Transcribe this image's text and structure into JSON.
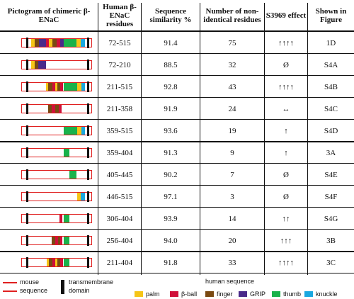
{
  "headers": {
    "pictogram": "Pictogram of chimeric β-ENaC",
    "residues": "Human β-ENaC residues",
    "similarity": "Sequence similarity %",
    "nonidentical": "Number of non-identical residues",
    "effect": "S3969 effect",
    "figure": "Shown in Figure"
  },
  "colors": {
    "mouse": "#e02020",
    "tm": "#111111",
    "palm": "#f5c518",
    "beta_ball": "#d0103a",
    "finger": "#7a4a12",
    "grip": "#4a2a8a",
    "thumb": "#19b24b",
    "knuckle": "#19a8e0"
  },
  "rows": [
    {
      "residues": "72-515",
      "similarity": "91.4",
      "nonidentical": "75",
      "effect": "↑↑↑↑",
      "figure": "1D",
      "segments": [
        [
          "palm",
          14,
          19
        ],
        [
          "finger",
          19,
          25
        ],
        [
          "grip",
          25,
          35
        ],
        [
          "beta_ball",
          35,
          39
        ],
        [
          "palm",
          39,
          44
        ],
        [
          "finger",
          44,
          50
        ],
        [
          "beta_ball",
          50,
          55
        ],
        [
          "grip",
          55,
          60
        ],
        [
          "thumb",
          60,
          78
        ],
        [
          "palm",
          78,
          84
        ],
        [
          "knuckle",
          84,
          90
        ]
      ]
    },
    {
      "residues": "72-210",
      "similarity": "88.5",
      "nonidentical": "32",
      "effect": "Ø",
      "figure": "S4A",
      "segments": [
        [
          "palm",
          14,
          19
        ],
        [
          "finger",
          19,
          24
        ],
        [
          "grip",
          24,
          35
        ]
      ]
    },
    {
      "residues": "211-515",
      "similarity": "92.8",
      "nonidentical": "43",
      "effect": "↑↑↑↑",
      "figure": "S4B",
      "segments": [
        [
          "palm",
          35,
          38
        ],
        [
          "finger",
          38,
          44
        ],
        [
          "beta_ball",
          44,
          48
        ],
        [
          "palm",
          48,
          51
        ],
        [
          "finger",
          51,
          55
        ],
        [
          "beta_ball",
          55,
          59
        ],
        [
          "thumb",
          60,
          79
        ],
        [
          "palm",
          79,
          85
        ],
        [
          "knuckle",
          85,
          90
        ]
      ]
    },
    {
      "residues": "211-358",
      "similarity": "91.9",
      "nonidentical": "24",
      "effect": "↔",
      "figure": "S4C",
      "segments": [
        [
          "finger",
          38,
          43
        ],
        [
          "beta_ball",
          43,
          48
        ],
        [
          "finger",
          48,
          53
        ],
        [
          "beta_ball",
          53,
          57
        ]
      ]
    },
    {
      "residues": "359-515",
      "similarity": "93.6",
      "nonidentical": "19",
      "effect": "↑",
      "figure": "S4D",
      "segments": [
        [
          "thumb",
          60,
          79
        ],
        [
          "palm",
          79,
          85
        ],
        [
          "knuckle",
          85,
          90
        ]
      ]
    },
    {
      "residues": "359-404",
      "similarity": "91.3",
      "nonidentical": "9",
      "effect": "↑",
      "figure": "3A",
      "segments": [
        [
          "thumb",
          60,
          68
        ]
      ]
    },
    {
      "residues": "405-445",
      "similarity": "90.2",
      "nonidentical": "7",
      "effect": "Ø",
      "figure": "S4E",
      "segments": [
        [
          "thumb",
          68,
          78
        ]
      ]
    },
    {
      "residues": "446-515",
      "similarity": "97.1",
      "nonidentical": "3",
      "effect": "Ø",
      "figure": "S4F",
      "segments": [
        [
          "palm",
          79,
          84
        ],
        [
          "knuckle",
          84,
          90
        ]
      ]
    },
    {
      "residues": "306-404",
      "similarity": "93.9",
      "nonidentical": "14",
      "effect": "↑↑",
      "figure": "S4G",
      "segments": [
        [
          "beta_ball",
          54,
          58
        ],
        [
          "thumb",
          60,
          68
        ]
      ]
    },
    {
      "residues": "256-404",
      "similarity": "94.0",
      "nonidentical": "20",
      "effect": "↑↑↑",
      "figure": "3B",
      "segments": [
        [
          "finger",
          43,
          48
        ],
        [
          "beta_ball",
          48,
          52
        ],
        [
          "finger",
          52,
          55
        ],
        [
          "beta_ball",
          55,
          58
        ],
        [
          "thumb",
          60,
          68
        ]
      ]
    },
    {
      "residues": "211-404",
      "similarity": "91.8",
      "nonidentical": "33",
      "effect": "↑↑↑↑",
      "figure": "3C",
      "segments": [
        [
          "palm",
          36,
          39
        ],
        [
          "finger",
          39,
          44
        ],
        [
          "beta_ball",
          44,
          48
        ],
        [
          "palm",
          48,
          51
        ],
        [
          "finger",
          51,
          55
        ],
        [
          "beta_ball",
          55,
          59
        ],
        [
          "thumb",
          60,
          68
        ]
      ]
    }
  ],
  "legend": {
    "mouse_label_1": "mouse",
    "mouse_label_2": "sequence",
    "tm_label_1": "transmembrane",
    "tm_label_2": "domain",
    "human_title": "human sequence",
    "items": [
      {
        "key": "palm",
        "label": "palm"
      },
      {
        "key": "beta_ball",
        "label": "β-ball"
      },
      {
        "key": "finger",
        "label": "finger"
      },
      {
        "key": "grip",
        "label": "GRIP"
      },
      {
        "key": "thumb",
        "label": "thumb"
      },
      {
        "key": "knuckle",
        "label": "knuckle"
      }
    ]
  }
}
